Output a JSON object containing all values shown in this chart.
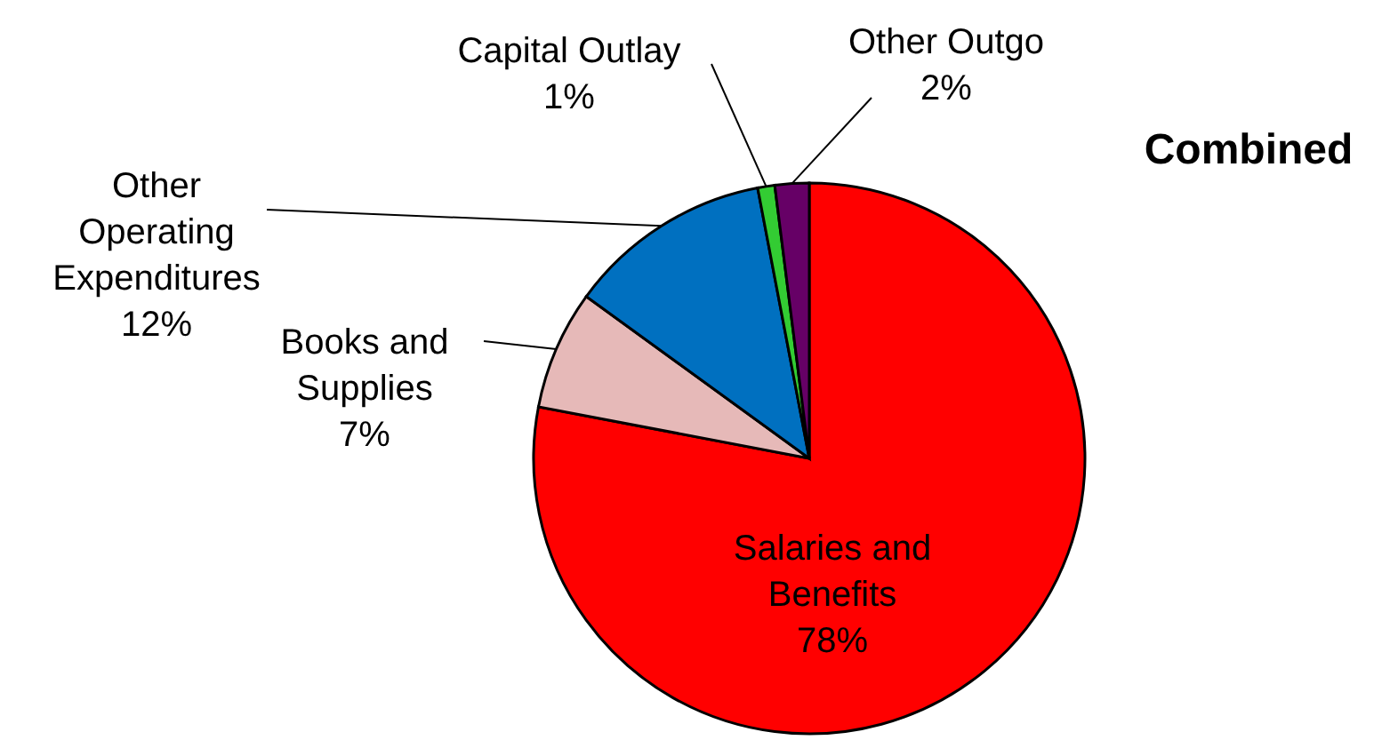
{
  "chart_data": {
    "type": "pie",
    "title": "Combined",
    "categories": [
      "Salaries and\nBenefits",
      "Books and\nSupplies",
      "Other\nOperating\nExpenditures",
      "Capital Outlay",
      "Other Outgo"
    ],
    "values": [
      78,
      7,
      12,
      1,
      2
    ],
    "value_labels": [
      "78%",
      "7%",
      "12%",
      "1%",
      "2%"
    ],
    "colors": [
      "#ff0000",
      "#e6b9b8",
      "#0070c0",
      "#33cc33",
      "#660066"
    ]
  }
}
